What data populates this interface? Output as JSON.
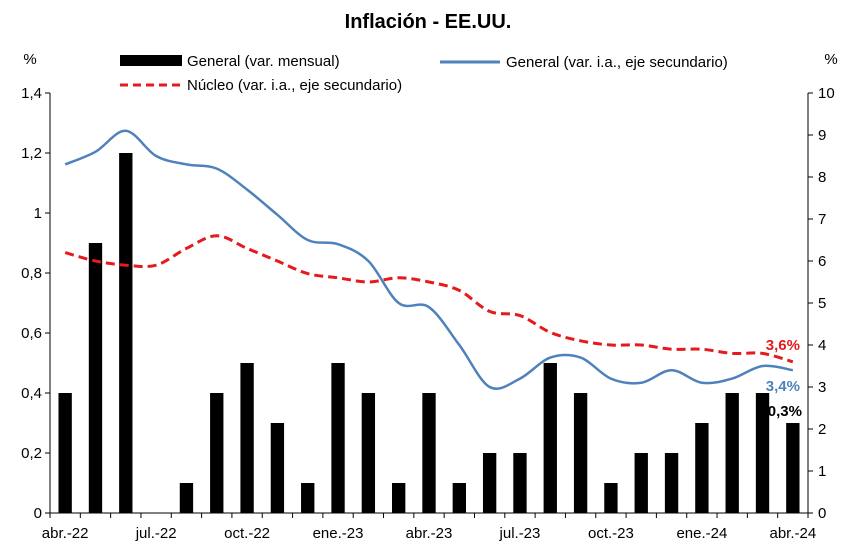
{
  "chart_data": {
    "type": "bar+line",
    "title": "Inflación - EE.UU.",
    "y_left_unit": "%",
    "y_right_unit": "%",
    "y_left_range": [
      0,
      1.4
    ],
    "y_left_ticks": [
      "0",
      "0,2",
      "0,4",
      "0,6",
      "0,8",
      "1",
      "1,2",
      "1,4"
    ],
    "y_right_range": [
      0,
      10
    ],
    "y_right_ticks": [
      "0",
      "1",
      "2",
      "3",
      "4",
      "5",
      "6",
      "7",
      "8",
      "9",
      "10"
    ],
    "x_tick_labels": [
      "abr.-22",
      "jul.-22",
      "oct.-22",
      "ene.-23",
      "abr.-23",
      "jul.-23",
      "oct.-23",
      "ene.-24",
      "abr.-24"
    ],
    "x_tick_indices": [
      0,
      3,
      6,
      9,
      12,
      15,
      18,
      21,
      24
    ],
    "months": [
      "2022-04",
      "2022-05",
      "2022-06",
      "2022-07",
      "2022-08",
      "2022-09",
      "2022-10",
      "2022-11",
      "2022-12",
      "2023-01",
      "2023-02",
      "2023-03",
      "2023-04",
      "2023-05",
      "2023-06",
      "2023-07",
      "2023-08",
      "2023-09",
      "2023-10",
      "2023-11",
      "2023-12",
      "2024-01",
      "2024-02",
      "2024-03",
      "2024-04"
    ],
    "series": [
      {
        "name": "General (var. mensual)",
        "kind": "bar",
        "axis": "left",
        "color": "#000000",
        "values": [
          0.4,
          0.9,
          1.2,
          0.0,
          0.1,
          0.4,
          0.5,
          0.3,
          0.1,
          0.5,
          0.4,
          0.1,
          0.4,
          0.1,
          0.2,
          0.2,
          0.5,
          0.4,
          0.1,
          0.2,
          0.2,
          0.3,
          0.4,
          0.4,
          0.3
        ]
      },
      {
        "name": "General (var. i.a., eje secundario)",
        "kind": "line",
        "axis": "right",
        "color": "#4F81BD",
        "values": [
          8.3,
          8.6,
          9.1,
          8.5,
          8.3,
          8.2,
          7.7,
          7.1,
          6.5,
          6.4,
          6.0,
          5.0,
          4.9,
          4.0,
          3.0,
          3.2,
          3.7,
          3.7,
          3.2,
          3.1,
          3.4,
          3.1,
          3.2,
          3.5,
          3.4
        ]
      },
      {
        "name": "Núcleo (var. i.a., eje secundario)",
        "kind": "line",
        "axis": "right",
        "color": "#E41A1C",
        "dashed": true,
        "values": [
          6.2,
          6.0,
          5.9,
          5.9,
          6.3,
          6.6,
          6.3,
          6.0,
          5.7,
          5.6,
          5.5,
          5.6,
          5.5,
          5.3,
          4.8,
          4.7,
          4.3,
          4.1,
          4.0,
          4.0,
          3.9,
          3.9,
          3.8,
          3.8,
          3.6
        ]
      }
    ],
    "annotations": [
      {
        "text": "3,6%",
        "series": 2,
        "color": "#E41A1C"
      },
      {
        "text": "3,4%",
        "series": 1,
        "color": "#4F81BD"
      },
      {
        "text": "0,3%",
        "series": 0,
        "color": "#000000"
      }
    ],
    "legend_position": "top"
  }
}
